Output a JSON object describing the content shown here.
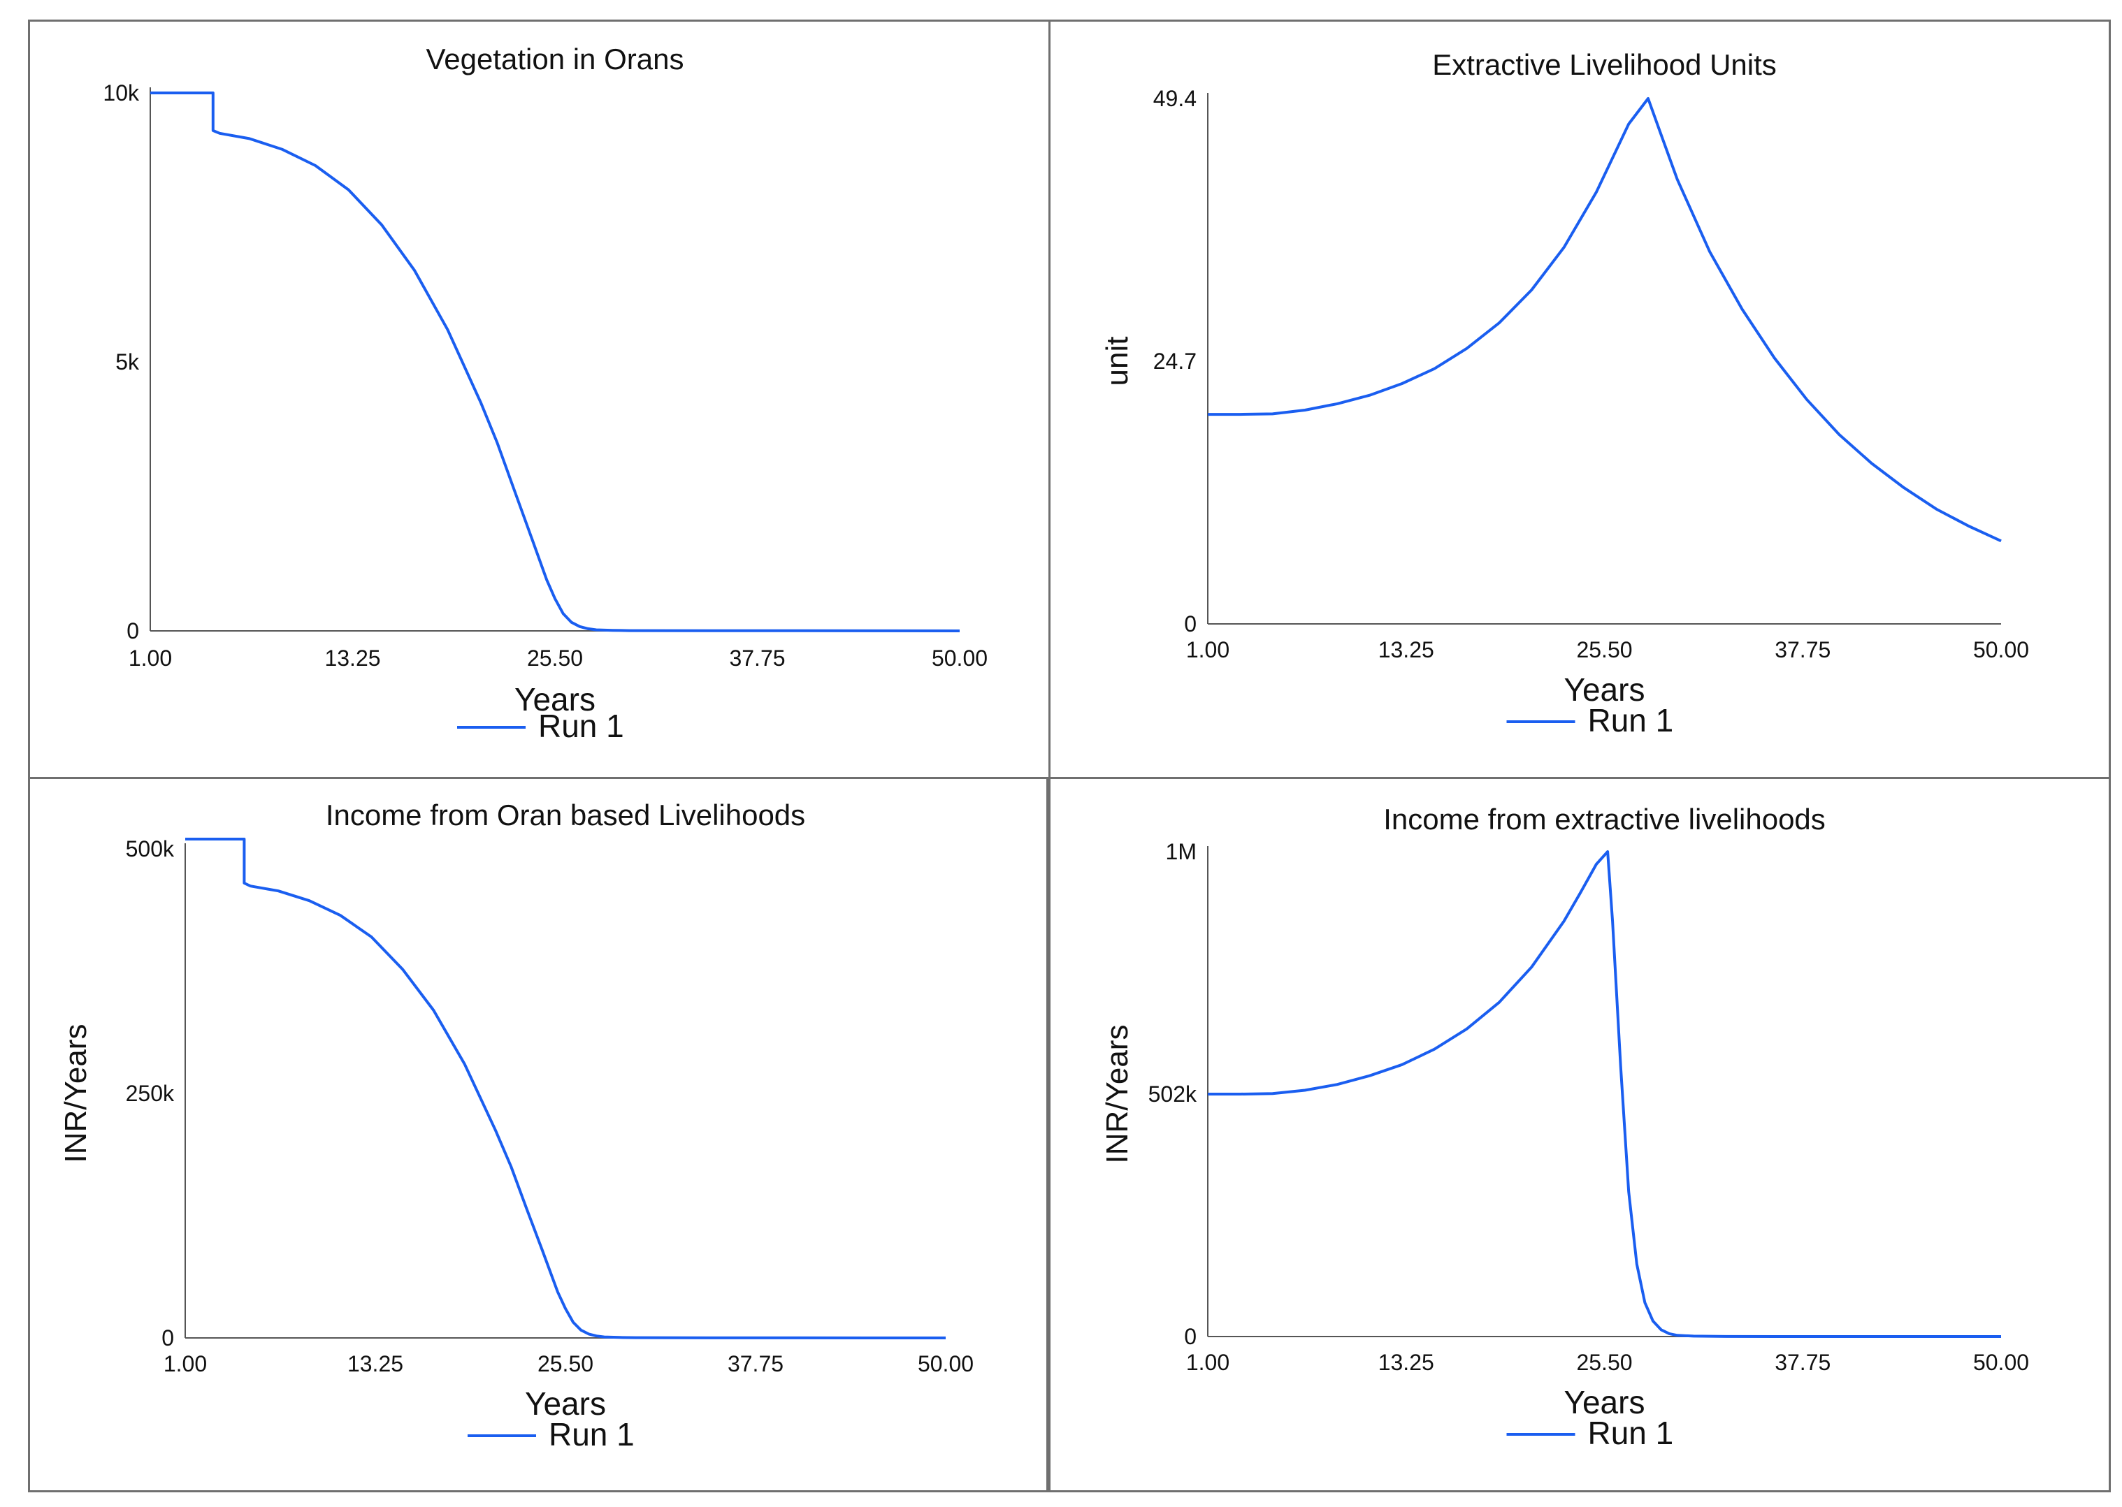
{
  "chart_data": [
    {
      "type": "line",
      "title": "Vegetation in Orans",
      "xlabel": "Years",
      "ylabel": "",
      "xlim": [
        1,
        50
      ],
      "ylim": [
        0,
        10000
      ],
      "xticks": [
        "1.00",
        "13.25",
        "25.50",
        "37.75",
        "50.00"
      ],
      "yticks": [
        {
          "value": 0,
          "label": "0"
        },
        {
          "value": 5000,
          "label": "5k"
        },
        {
          "value": 10000,
          "label": "10k"
        }
      ],
      "legend": "bottom-center",
      "series": [
        {
          "name": "Run 1",
          "color": "#1a5ef0",
          "x": [
            1,
            4.8,
            4.8,
            5.2,
            7,
            9,
            11,
            13,
            15,
            17,
            19,
            21,
            22,
            23,
            24,
            25,
            25.5,
            26,
            26.5,
            27,
            27.5,
            28,
            29,
            30,
            35,
            40,
            45,
            50
          ],
          "y": [
            10000,
            10000,
            9300,
            9250,
            9150,
            8950,
            8650,
            8200,
            7550,
            6700,
            5600,
            4250,
            3500,
            2650,
            1800,
            950,
            600,
            320,
            160,
            80,
            40,
            20,
            10,
            5,
            3,
            2,
            1,
            0
          ]
        }
      ]
    },
    {
      "type": "line",
      "title": "Extractive Livelihood Units",
      "xlabel": "Years",
      "ylabel": "unit",
      "xlim": [
        1,
        50
      ],
      "ylim": [
        0,
        49.4
      ],
      "xticks": [
        "1.00",
        "13.25",
        "25.50",
        "37.75",
        "50.00"
      ],
      "yticks": [
        {
          "value": 0,
          "label": "0"
        },
        {
          "value": 24.7,
          "label": "24.7"
        },
        {
          "value": 49.4,
          "label": "49.4"
        }
      ],
      "legend": "bottom-center",
      "series": [
        {
          "name": "Run 1",
          "color": "#1a5ef0",
          "x": [
            1,
            3,
            5,
            7,
            9,
            11,
            13,
            15,
            17,
            19,
            21,
            23,
            25,
            26,
            27,
            28.2,
            29,
            30,
            32,
            34,
            36,
            38,
            40,
            42,
            44,
            46,
            48,
            50
          ],
          "y": [
            19.7,
            19.7,
            19.75,
            20.1,
            20.7,
            21.5,
            22.6,
            24.0,
            25.9,
            28.3,
            31.4,
            35.4,
            40.6,
            43.8,
            47.0,
            49.4,
            46.0,
            41.8,
            35.0,
            29.6,
            25.0,
            21.1,
            17.8,
            15.1,
            12.8,
            10.8,
            9.2,
            7.8
          ]
        }
      ]
    },
    {
      "type": "line",
      "title": "Income from Oran based Livelihoods",
      "xlabel": "Years",
      "ylabel": "INR/Years",
      "xlim": [
        1,
        50
      ],
      "ylim": [
        0,
        500000
      ],
      "xticks": [
        "1.00",
        "13.25",
        "25.50",
        "37.75",
        "50.00"
      ],
      "yticks": [
        {
          "value": 0,
          "label": "0"
        },
        {
          "value": 250000,
          "label": "250k"
        },
        {
          "value": 500000,
          "label": "500k"
        }
      ],
      "legend": "bottom-center",
      "series": [
        {
          "name": "Run 1",
          "color": "#1a5ef0",
          "x": [
            1,
            4.8,
            4.8,
            5.2,
            7,
            9,
            11,
            13,
            15,
            17,
            19,
            21,
            22,
            23,
            24,
            25,
            25.5,
            26,
            26.5,
            27,
            27.5,
            28,
            29,
            30,
            35,
            40,
            45,
            50
          ],
          "y": [
            510000,
            510000,
            465000,
            462000,
            457000,
            447000,
            432000,
            410000,
            377000,
            335000,
            280000,
            212000,
            175000,
            132000,
            90000,
            47000,
            30000,
            16000,
            8000,
            4000,
            2000,
            1000,
            500,
            250,
            100,
            50,
            20,
            0
          ]
        }
      ]
    },
    {
      "type": "line",
      "title": "Income from extractive livelihoods",
      "xlabel": "Years",
      "ylabel": "INR/Years",
      "xlim": [
        1,
        50
      ],
      "ylim": [
        0,
        1004000
      ],
      "xticks": [
        "1.00",
        "13.25",
        "25.50",
        "37.75",
        "50.00"
      ],
      "yticks": [
        {
          "value": 0,
          "label": "0"
        },
        {
          "value": 502000,
          "label": "502k"
        },
        {
          "value": 1004000,
          "label": "1M"
        }
      ],
      "legend": "bottom-center",
      "series": [
        {
          "name": "Run 1",
          "color": "#1a5ef0",
          "x": [
            1,
            3,
            5,
            7,
            9,
            11,
            13,
            15,
            17,
            19,
            21,
            23,
            24,
            25,
            25.7,
            26,
            26.5,
            27,
            27.5,
            28,
            28.5,
            29,
            29.5,
            30,
            31,
            33,
            40,
            50
          ],
          "y": [
            502000,
            502000,
            503000,
            510000,
            522000,
            540000,
            563000,
            595000,
            637000,
            692000,
            765000,
            860000,
            918000,
            978000,
            1004000,
            860000,
            560000,
            300000,
            150000,
            70000,
            32000,
            14000,
            6000,
            2500,
            800,
            200,
            50,
            0
          ]
        }
      ]
    }
  ]
}
